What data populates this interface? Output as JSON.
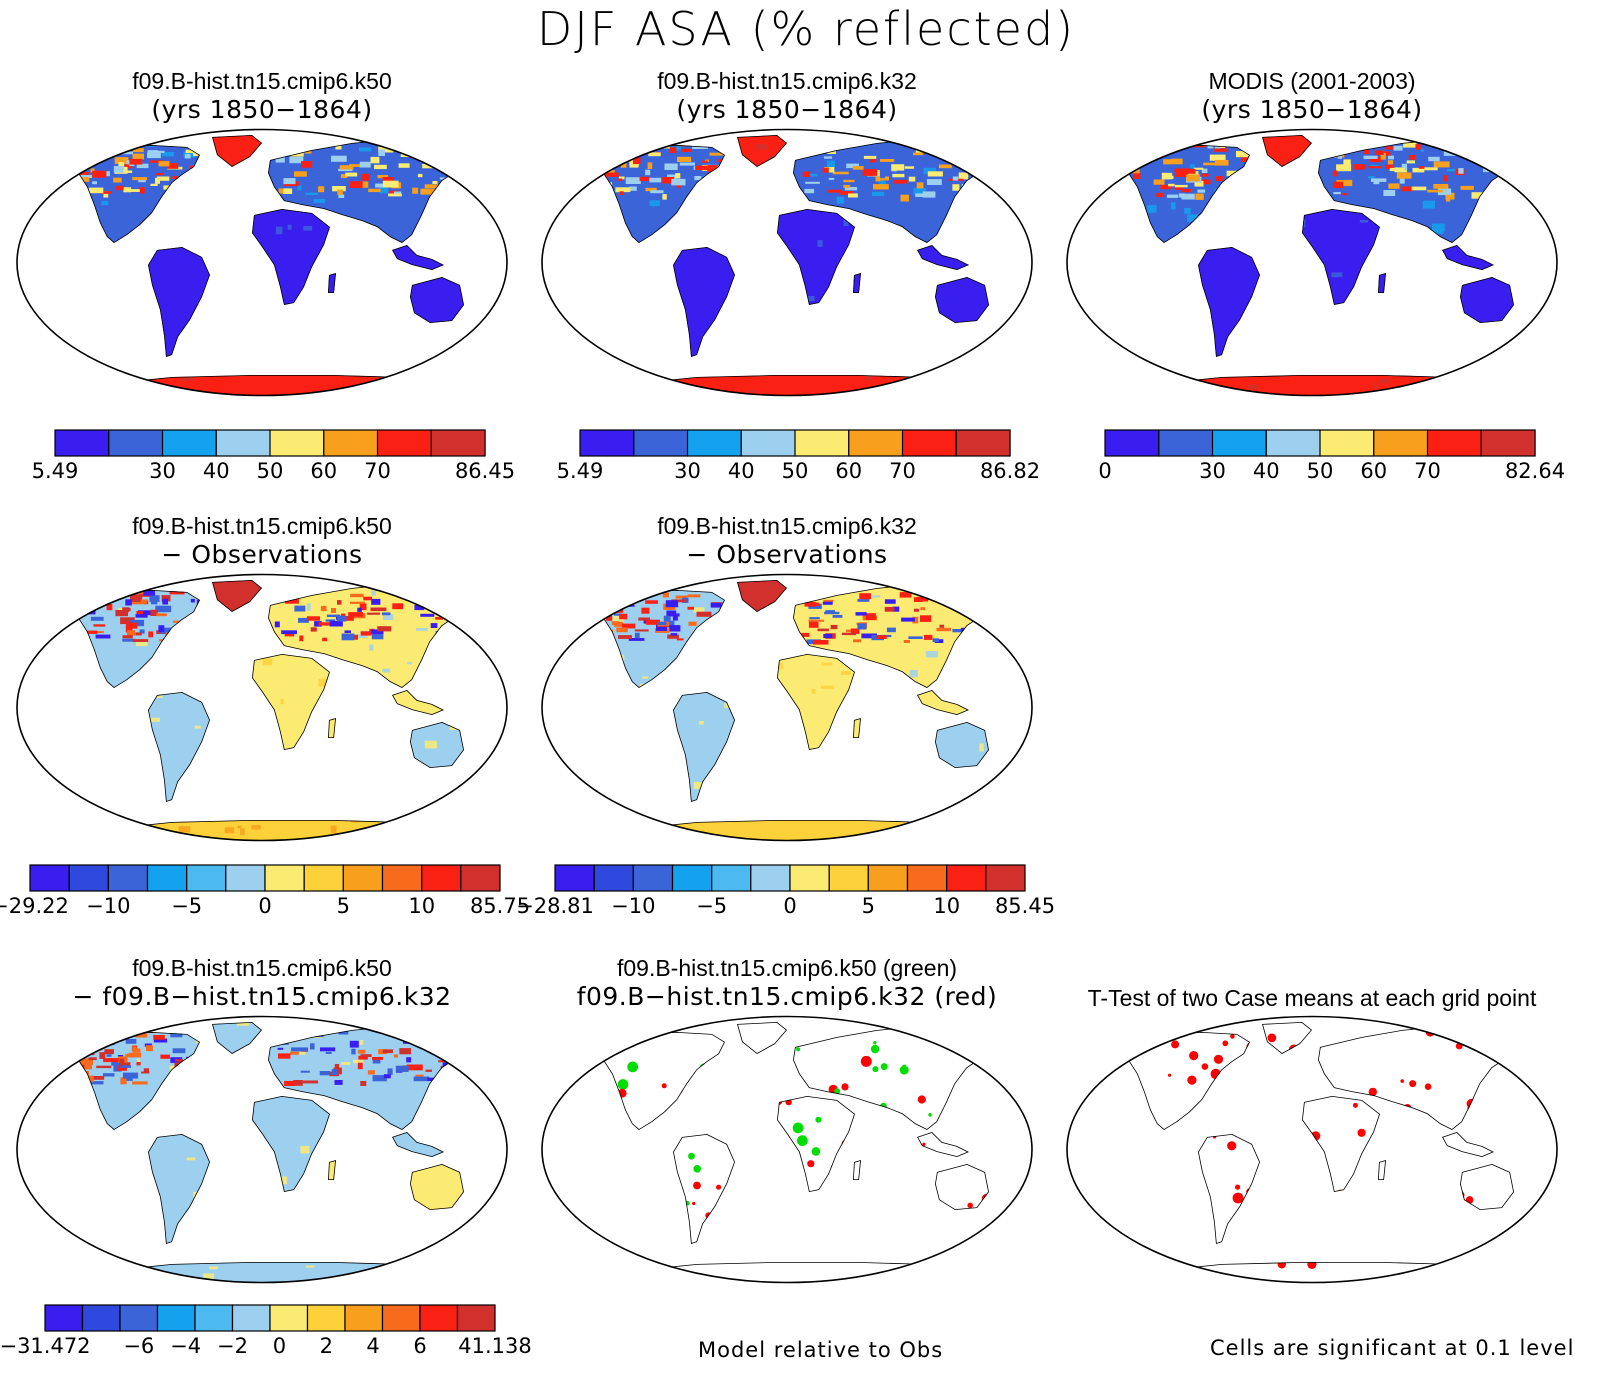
{
  "page_title": "DJF ASA (% reflected)",
  "colors": {
    "abs": [
      "#3a1ef0",
      "#3b64d9",
      "#14a2ee",
      "#9dd0ef",
      "#fbeb73",
      "#f89f1d",
      "#fb2014",
      "#d2302c"
    ],
    "diff": [
      "#3a1ef0",
      "#2f49de",
      "#3b64d9",
      "#14a2ee",
      "#4cbaf0",
      "#9dd0ef",
      "#fbeb73",
      "#fdd13a",
      "#f89f1d",
      "#f86a1c",
      "#fb2014",
      "#d2302c"
    ],
    "ocean": "#ffffff",
    "sig_red": "#ff0000",
    "sig_green": "#00dd00"
  },
  "chart_data": [
    {
      "type": "heatmap",
      "title": "f09.B-hist.tn15.cmip6.k50",
      "subtitle": "(yrs 1850−1864)",
      "colorbar": {
        "kind": "abs",
        "labels": [
          "5.49",
          "30",
          "40",
          "50",
          "60",
          "70",
          "86.45"
        ]
      }
    },
    {
      "type": "heatmap",
      "title": "f09.B-hist.tn15.cmip6.k32",
      "subtitle": "(yrs 1850−1864)",
      "colorbar": {
        "kind": "abs",
        "labels": [
          "5.49",
          "30",
          "40",
          "50",
          "60",
          "70",
          "86.82"
        ]
      }
    },
    {
      "type": "heatmap",
      "title": "MODIS (2001-2003)",
      "subtitle": "(yrs 1850−1864)",
      "colorbar": {
        "kind": "abs",
        "labels": [
          "0",
          "30",
          "40",
          "50",
          "60",
          "70",
          "82.64"
        ]
      }
    },
    {
      "type": "heatmap",
      "title": "f09.B-hist.tn15.cmip6.k50",
      "subtitle": "− Observations",
      "colorbar": {
        "kind": "diff",
        "labels": [
          "−29.22",
          "−10",
          "−5",
          "0",
          "5",
          "10",
          "85.75"
        ]
      }
    },
    {
      "type": "heatmap",
      "title": "f09.B-hist.tn15.cmip6.k32",
      "subtitle": "− Observations",
      "colorbar": {
        "kind": "diff",
        "labels": [
          "−28.81",
          "−10",
          "−5",
          "0",
          "5",
          "10",
          "85.45"
        ]
      }
    },
    {
      "type": "heatmap",
      "title": "f09.B-hist.tn15.cmip6.k50",
      "subtitle": "− f09.B−hist.tn15.cmip6.k32",
      "colorbar": {
        "kind": "diff",
        "labels": [
          "−31.472",
          "−6",
          "−4",
          "−2",
          "0",
          "2",
          "4",
          "6",
          "41.138"
        ]
      }
    },
    {
      "type": "heatmap",
      "title": "f09.B-hist.tn15.cmip6.k50 (green)",
      "subtitle": "f09.B−hist.tn15.cmip6.k32 (red)",
      "note": "Model relative to Obs"
    },
    {
      "type": "heatmap",
      "title": "T-Test of two Case means at each grid point",
      "subtitle": "",
      "note": "Cells are significant at 0.1 level"
    }
  ]
}
